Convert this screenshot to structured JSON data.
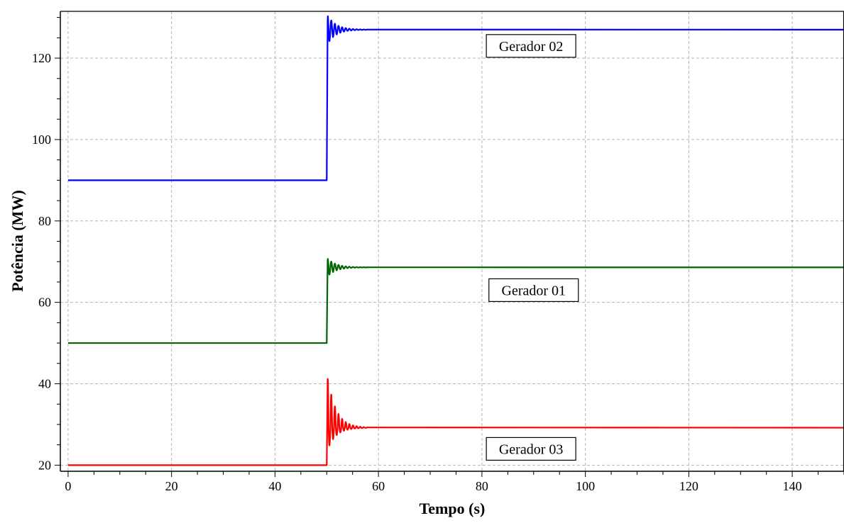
{
  "chart_data": {
    "type": "line",
    "title": "",
    "xlabel": "Tempo (s)",
    "ylabel": "Potência (MW)",
    "xlim": [
      -1.5,
      150
    ],
    "ylim": [
      18.5,
      131.5
    ],
    "x_ticks": [
      0,
      20,
      40,
      60,
      80,
      100,
      120,
      140
    ],
    "y_ticks": [
      20,
      40,
      60,
      80,
      100,
      120
    ],
    "x_minor_step": 5,
    "y_minor_step": 5,
    "grid": true,
    "legend": "none",
    "step_time": 50,
    "series": [
      {
        "name": "Gerador 02",
        "color": "#0000ff",
        "initial": 90,
        "final": 127,
        "overshoot_peak": 130.5,
        "oscillation_period": 0.7,
        "decay_time": 1.6,
        "settle_time": 58
      },
      {
        "name": "Gerador 01",
        "color": "#006400",
        "initial": 50,
        "final": 68.6,
        "overshoot_peak": 70.8,
        "oscillation_period": 0.7,
        "decay_time": 1.6,
        "settle_time": 58
      },
      {
        "name": "Gerador 03",
        "color": "#ff0000",
        "initial": 20,
        "final": 29.2,
        "overshoot_peak": 41.8,
        "trough": 23.8,
        "oscillation_period": 0.7,
        "decay_time": 1.6,
        "settle_time": 58
      }
    ],
    "annotations": [
      {
        "text": "Gerador 02",
        "series": "Gerador 02",
        "x": 89.5,
        "y": 123
      },
      {
        "text": "Gerador 01",
        "series": "Gerador 01",
        "x": 90,
        "y": 63
      },
      {
        "text": "Gerador 03",
        "series": "Gerador 03",
        "x": 89.5,
        "y": 24
      }
    ]
  }
}
